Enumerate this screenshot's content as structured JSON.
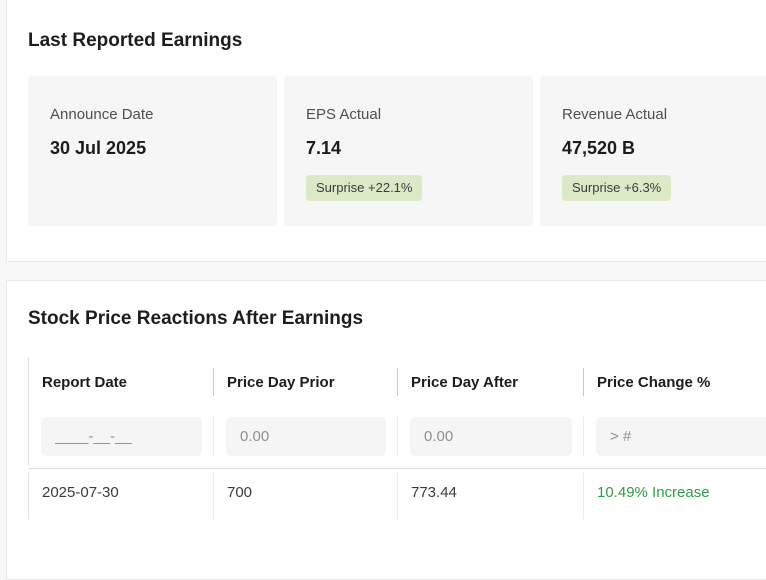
{
  "last_reported_earnings": {
    "title": "Last Reported Earnings",
    "cards": [
      {
        "label": "Announce Date",
        "value": "30 Jul 2025"
      },
      {
        "label": "EPS Actual",
        "value": "7.14",
        "badge": "Surprise +22.1%"
      },
      {
        "label": "Revenue Actual",
        "value": "47,520 B",
        "badge": "Surprise +6.3%"
      }
    ]
  },
  "stock_price_reactions": {
    "title": "Stock Price Reactions After Earnings",
    "columns": [
      "Report Date",
      "Price Day Prior",
      "Price Day After",
      "Price Change %"
    ],
    "filters": {
      "report_date_placeholder": "____-__-__",
      "price_day_prior_placeholder": "0.00",
      "price_day_after_placeholder": "0.00",
      "price_change_placeholder": "> #"
    },
    "rows": [
      {
        "report_date": "2025-07-30",
        "price_day_prior": "700",
        "price_day_after": "773.44",
        "price_change": "10.49% Increase",
        "direction": "increase"
      }
    ]
  },
  "colors": {
    "surprise_badge_bg": "#dbe9c6",
    "increase_text": "#2e9d45",
    "panel_bg": "#ffffff",
    "page_bg": "#f8f8f8",
    "card_bg": "#f6f6f6"
  }
}
